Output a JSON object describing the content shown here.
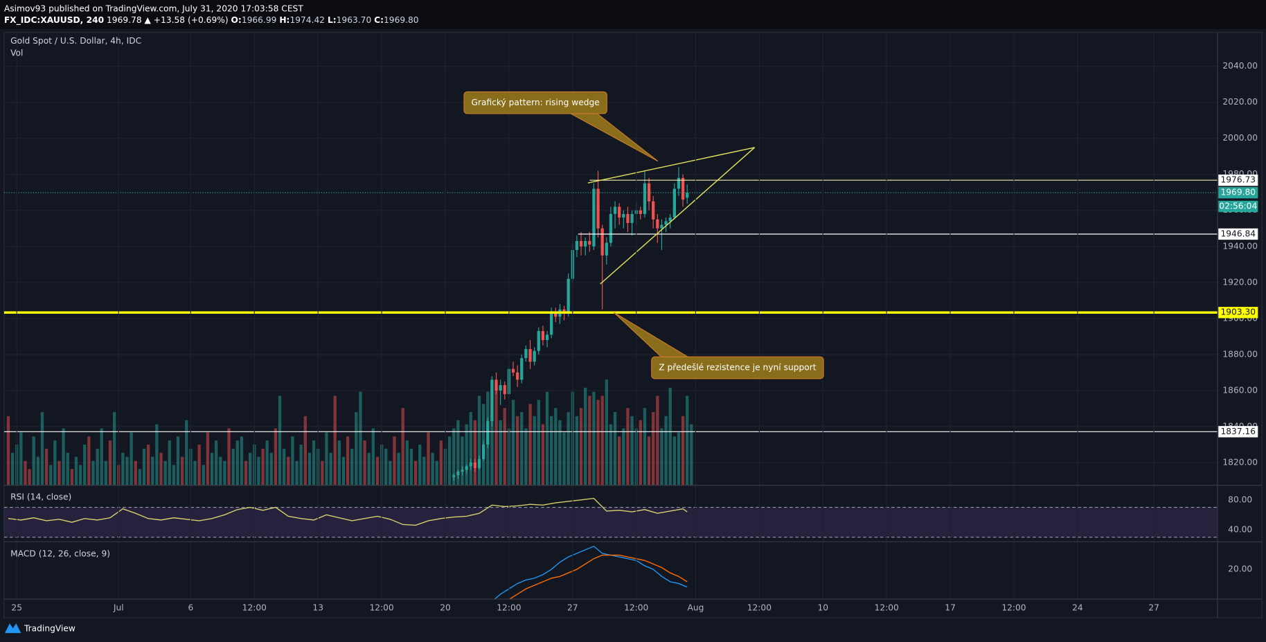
{
  "header": {
    "publisher": "Asimov93 published on TradingView.com, July 31, 2020 17:03:58 CEST",
    "quote": {
      "symbol": "FX_IDC:XAUUSD, 240",
      "last": "1969.78",
      "change": "▲ +13.58 (+0.69%)",
      "open_label": "O:",
      "open": "1966.99",
      "high_label": "H:",
      "high": "1974.42",
      "low_label": "L:",
      "low": "1963.70",
      "close_label": "C:",
      "close": "1969.80"
    }
  },
  "chart_data": [
    {
      "type": "candlestick",
      "title": "Gold Spot / U.S. Dollar, 4h, IDC",
      "x": [
        105,
        106,
        107,
        108,
        109,
        110,
        111,
        112,
        113,
        114,
        115,
        116,
        117,
        118,
        119,
        120,
        121,
        122,
        123,
        124,
        125,
        126,
        127,
        128,
        129,
        130,
        131,
        132,
        133,
        134,
        135,
        136,
        137,
        138,
        139,
        140,
        141,
        142,
        143,
        144,
        145,
        146,
        147,
        148,
        149,
        150,
        151,
        152,
        153,
        154,
        155,
        156,
        157,
        158,
        159,
        160
      ],
      "open": [
        1812,
        1813,
        1815,
        1816,
        1818,
        1820,
        1817,
        1822,
        1830,
        1843,
        1866,
        1860,
        1863,
        1858,
        1872,
        1870,
        1866,
        1878,
        1883,
        1876,
        1882,
        1893,
        1888,
        1891,
        1903,
        1901,
        1905,
        1903,
        1922,
        1938,
        1943,
        1940,
        1943,
        1940,
        1972,
        1950,
        1935,
        1942,
        1958,
        1962,
        1956,
        1958,
        1953,
        1958,
        1960,
        1958,
        1975,
        1965,
        1955,
        1950,
        1952,
        1954,
        1956,
        1972,
        1978,
        1966.99
      ],
      "high": [
        1814,
        1816,
        1818,
        1819,
        1822,
        1822,
        1824,
        1832,
        1845,
        1868,
        1870,
        1866,
        1865,
        1874,
        1876,
        1874,
        1880,
        1885,
        1888,
        1884,
        1895,
        1896,
        1893,
        1906,
        1906,
        1908,
        1907,
        1925,
        1942,
        1946,
        1948,
        1945,
        1948,
        1975,
        1982,
        1952,
        1945,
        1962,
        1965,
        1964,
        1960,
        1962,
        1960,
        1965,
        1962,
        1982,
        1978,
        1968,
        1958,
        1955,
        1956,
        1958,
        1975,
        1984,
        1980,
        1974.42
      ],
      "low": [
        1810,
        1811,
        1813,
        1814,
        1816,
        1815,
        1816,
        1821,
        1828,
        1840,
        1858,
        1852,
        1855,
        1855,
        1868,
        1862,
        1864,
        1876,
        1872,
        1874,
        1880,
        1885,
        1884,
        1889,
        1898,
        1897,
        1899,
        1901,
        1920,
        1934,
        1935,
        1935,
        1937,
        1938,
        1945,
        1905,
        1930,
        1940,
        1950,
        1952,
        1950,
        1948,
        1946,
        1952,
        1955,
        1956,
        1960,
        1950,
        1942,
        1938,
        1948,
        1950,
        1955,
        1968,
        1962,
        1963.7
      ],
      "close": [
        1813,
        1815,
        1816,
        1818,
        1820,
        1817,
        1822,
        1830,
        1843,
        1866,
        1860,
        1863,
        1858,
        1872,
        1870,
        1866,
        1878,
        1883,
        1876,
        1882,
        1893,
        1888,
        1891,
        1903,
        1901,
        1905,
        1903,
        1922,
        1938,
        1943,
        1940,
        1943,
        1941,
        1972,
        1950,
        1935,
        1942,
        1958,
        1962,
        1956,
        1958,
        1953,
        1958,
        1960,
        1958,
        1975,
        1965,
        1955,
        1950,
        1952,
        1954,
        1956,
        1972,
        1978,
        1966,
        1969.8
      ],
      "up_color": "#26a69a",
      "down_color": "#ef5350",
      "xlim": [
        -1,
        285
      ],
      "ylim": [
        1807.4,
        2058.8
      ],
      "yticks": [
        {
          "value": 1820,
          "label": "1820.00"
        },
        {
          "value": 1840,
          "label": "1840.00"
        },
        {
          "value": 1860,
          "label": "1860.00"
        },
        {
          "value": 1880,
          "label": "1880.00"
        },
        {
          "value": 1900,
          "label": "1900.00"
        },
        {
          "value": 1920,
          "label": "1920.00"
        },
        {
          "value": 1940,
          "label": "1940.00"
        },
        {
          "value": 1960,
          "label": "1960.00"
        },
        {
          "value": 1980,
          "label": "1980.00"
        },
        {
          "value": 2000,
          "label": "2000.00"
        },
        {
          "value": 2020,
          "label": "2020.00"
        },
        {
          "value": 2040,
          "label": "2040.00"
        }
      ],
      "xticks": [
        {
          "value": 2,
          "label": "25"
        },
        {
          "value": 26,
          "label": "Jul"
        },
        {
          "value": 43,
          "label": "6"
        },
        {
          "value": 58,
          "label": "12:00"
        },
        {
          "value": 73,
          "label": "13"
        },
        {
          "value": 88,
          "label": "12:00"
        },
        {
          "value": 103,
          "label": "20"
        },
        {
          "value": 118,
          "label": "12:00"
        },
        {
          "value": 133,
          "label": "27"
        },
        {
          "value": 148,
          "label": "12:00"
        },
        {
          "value": 162,
          "label": "Aug"
        },
        {
          "value": 177,
          "label": "12:00"
        },
        {
          "value": 192,
          "label": "10"
        },
        {
          "value": 207,
          "label": "12:00"
        },
        {
          "value": 222,
          "label": "17"
        },
        {
          "value": 237,
          "label": "12:00"
        },
        {
          "value": 252,
          "label": "24"
        },
        {
          "value": 270,
          "label": "27"
        }
      ],
      "grid": true,
      "volume": {
        "name": "Vol",
        "values": [
          85,
          40,
          50,
          65,
          30,
          20,
          60,
          35,
          90,
          45,
          25,
          55,
          30,
          70,
          40,
          20,
          35,
          25,
          50,
          60,
          30,
          45,
          70,
          30,
          55,
          90,
          25,
          40,
          35,
          65,
          30,
          20,
          45,
          50,
          35,
          75,
          40,
          30,
          55,
          25,
          60,
          35,
          80,
          45,
          30,
          50,
          25,
          65,
          40,
          55,
          35,
          30,
          70,
          45,
          55,
          60,
          30,
          40,
          50,
          35,
          45,
          55,
          40,
          70,
          110,
          45,
          35,
          60,
          30,
          50,
          85,
          40,
          55,
          45,
          30,
          65,
          40,
          110,
          55,
          35,
          60,
          45,
          90,
          115,
          55,
          40,
          70,
          35,
          50,
          45,
          30,
          60,
          40,
          95,
          55,
          45,
          30,
          50,
          35,
          65,
          40,
          30,
          55,
          45,
          60,
          70,
          80,
          60,
          75,
          90,
          80,
          110,
          100,
          115,
          95,
          120,
          80,
          95,
          70,
          105,
          85,
          90,
          70,
          100,
          85,
          105,
          75,
          115,
          85,
          95,
          80,
          65,
          90,
          115,
          85,
          95,
          120,
          110,
          115,
          105,
          110,
          130,
          75,
          90,
          60,
          70,
          95,
          85,
          70,
          80,
          95,
          60,
          90,
          110,
          70,
          85,
          120,
          60,
          65,
          85,
          110,
          75
        ],
        "down": [
          0,
          4,
          5,
          9,
          12,
          15,
          19,
          24,
          26,
          30,
          33,
          36,
          41,
          45,
          47,
          52,
          56,
          60,
          63,
          66,
          70,
          74,
          77,
          80,
          84,
          87,
          91,
          93,
          96,
          99,
          102,
          110,
          115,
          117,
          120,
          123,
          126,
          135,
          137,
          139,
          140,
          144,
          146,
          149,
          151,
          152,
          153,
          159
        ],
        "up_color": "rgba(38,166,154,0.5)",
        "down_color": "rgba(239,83,80,0.5)"
      },
      "hlines": [
        {
          "value": 1976.73,
          "color": "#f5eeb0",
          "width": 1,
          "start": 137,
          "tag_color": "#ffffff"
        },
        {
          "value": 1946.84,
          "color": "#ffffff",
          "width": 1,
          "start": 134.3,
          "tag_color": "#ffffff"
        },
        {
          "value": 1903.3,
          "label": "1903.30",
          "color": "#ffff00",
          "width": 3,
          "tag_color": "#ffff00"
        },
        {
          "value": 1837.16,
          "color": "#ffffff",
          "width": 1,
          "tag_color": "#ffffff"
        }
      ],
      "last_price": {
        "value": 1969.8,
        "label": "1969.80",
        "countdown": "02:56:04",
        "color": "#26a69a"
      },
      "trendlines": [
        {
          "points": [
            [
              136.6,
              1975.2
            ],
            [
              175.9,
              1994.9
            ]
          ],
          "color": "#e6e65c"
        },
        {
          "points": [
            [
              139.5,
              1919.1
            ],
            [
              175.9,
              1994.9
            ]
          ],
          "color": "#e6e65c"
        }
      ],
      "annotations": [
        {
          "text": "Grafický pattern: rising wedge",
          "x": 107.4,
          "y": 2025.8,
          "target": [
            153.1,
            1987.3
          ]
        },
        {
          "text": "Z předešlé rezistence je nyní support",
          "x": 151.6,
          "y": 1878.7,
          "target": [
            142.7,
            1903.4
          ]
        }
      ]
    },
    {
      "type": "line",
      "title": "RSI (14, close)",
      "x": [
        0,
        3,
        6,
        9,
        12,
        15,
        18,
        21,
        24,
        27,
        30,
        33,
        36,
        39,
        42,
        45,
        48,
        51,
        54,
        57,
        60,
        63,
        66,
        69,
        72,
        75,
        78,
        81,
        84,
        87,
        90,
        93,
        96,
        99,
        102,
        105,
        108,
        111,
        114,
        117,
        120,
        123,
        126,
        129,
        132,
        135,
        138,
        141,
        144,
        147,
        150,
        153,
        156,
        159,
        160
      ],
      "series": [
        {
          "color": "#d6cf6b",
          "values": [
            55,
            53,
            56,
            52,
            54,
            50,
            55,
            53,
            56,
            68,
            62,
            55,
            53,
            56,
            54,
            52,
            55,
            60,
            67,
            70,
            66,
            70,
            58,
            55,
            53,
            60,
            56,
            52,
            55,
            58,
            54,
            47,
            46,
            52,
            55,
            57,
            58,
            62,
            73,
            71,
            72,
            74,
            73,
            76,
            78,
            80,
            82,
            65,
            66,
            64,
            67,
            62,
            65,
            68,
            64
          ]
        }
      ],
      "band": [
        30,
        70
      ],
      "band_color": "rgba(126,87,194,0.18)",
      "ylim": [
        23.8,
        99.5
      ],
      "yticks": [
        {
          "value": 80,
          "label": "80.00"
        },
        {
          "value": 40,
          "label": "40.00"
        }
      ]
    },
    {
      "type": "line",
      "title": "MACD (12, 26, close, 9)",
      "x": [
        114,
        116,
        118,
        120,
        122,
        124,
        126,
        128,
        130,
        132,
        134,
        136,
        138,
        140,
        142,
        144,
        146,
        148,
        150,
        152,
        154,
        156,
        158,
        160
      ],
      "series": [
        {
          "color": "#2196f3",
          "values": [
            2,
            6,
            9,
            12,
            14,
            15,
            17,
            20,
            24,
            27,
            29,
            31,
            33,
            29,
            28,
            27,
            26,
            25,
            22,
            20,
            16,
            13,
            12,
            10
          ]
        },
        {
          "color": "#ff6d00",
          "values": [
            null,
            null,
            3,
            6,
            9,
            11,
            13,
            15,
            16,
            18,
            20,
            23,
            26,
            28,
            28,
            28,
            27,
            26,
            25,
            23,
            21,
            18,
            16,
            13
          ]
        }
      ],
      "ylim": [
        3.2,
        35.5
      ],
      "yticks": [
        {
          "value": 20,
          "label": "20.00"
        }
      ]
    }
  ],
  "footer": {
    "brand": "TradingView"
  }
}
